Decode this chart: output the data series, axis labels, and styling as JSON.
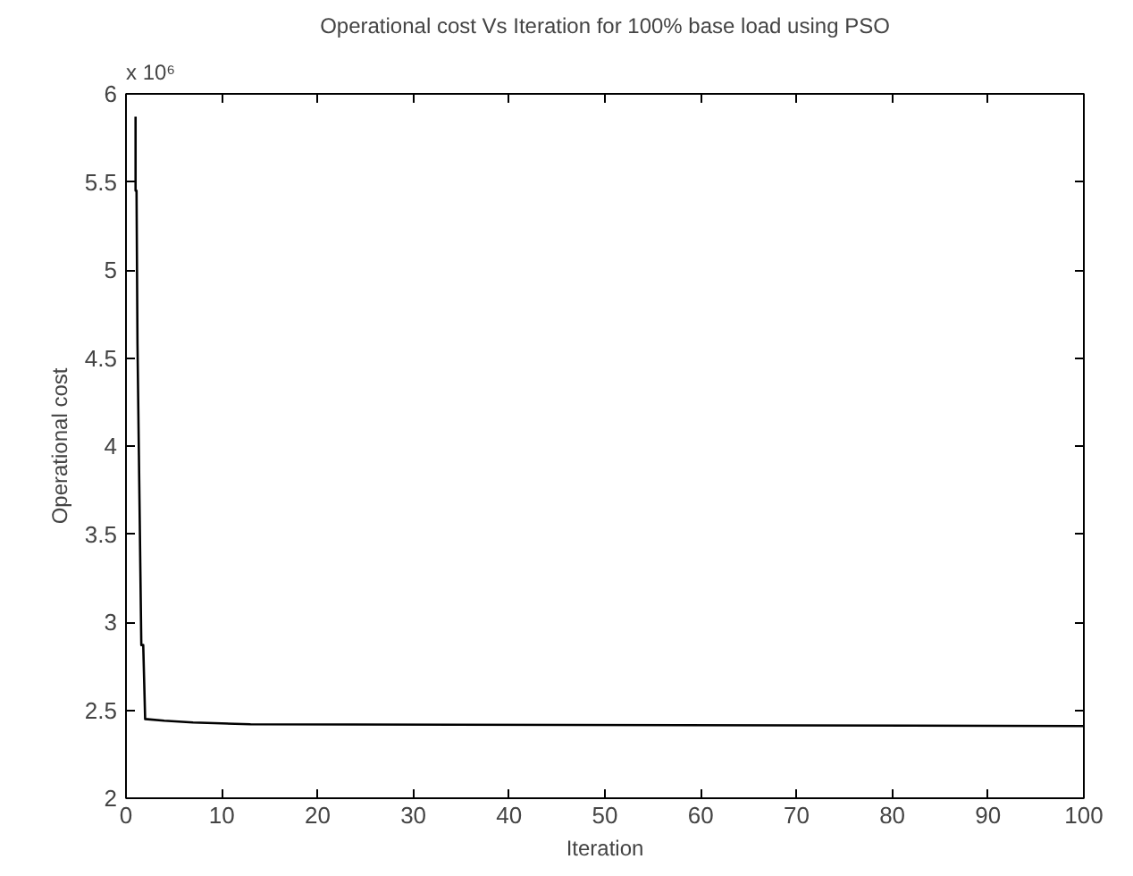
{
  "chart_data": {
    "type": "line",
    "title": "Operational cost Vs Iteration for 100% base load using PSO",
    "xlabel": "Iteration",
    "ylabel": "Operational cost",
    "annotations": [
      "x 10⁶"
    ],
    "x": [
      1,
      1,
      1.1,
      1.2,
      1.4,
      1.6,
      1.8,
      2,
      4,
      7,
      13,
      100
    ],
    "series": [
      {
        "color": "#000000",
        "values": [
          5.87,
          5.45,
          5.45,
          4.58,
          3.73,
          2.87,
          2.87,
          2.45,
          2.44,
          2.43,
          2.42,
          2.41
        ]
      }
    ],
    "xlim": [
      0,
      100
    ],
    "ylim": [
      2,
      6
    ],
    "xticks": [
      0,
      10,
      20,
      30,
      40,
      50,
      60,
      70,
      80,
      90,
      100
    ],
    "yticks": [
      2,
      2.5,
      3,
      3.5,
      4,
      4.5,
      5,
      5.5,
      6
    ],
    "grid": false,
    "marker": "none",
    "line_style": "solid"
  }
}
